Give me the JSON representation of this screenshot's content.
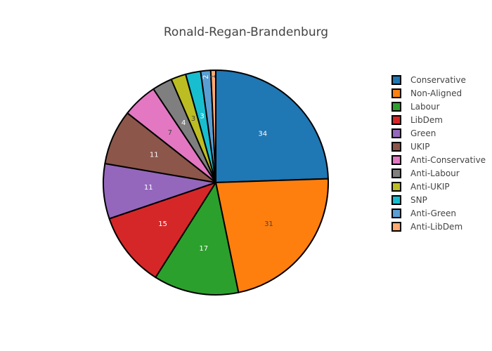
{
  "chart_data": {
    "type": "pie",
    "title": "Ronald-Regan-Brandenburg",
    "legend_position": "right",
    "sort": "descending",
    "direction": "clockwise",
    "start": "top",
    "slices": [
      {
        "label": "Conservative",
        "value": 34,
        "color": "#1f77b4"
      },
      {
        "label": "Non-Aligned",
        "value": 31,
        "color": "#ff7f0e"
      },
      {
        "label": "Labour",
        "value": 17,
        "color": "#2ca02c"
      },
      {
        "label": "LibDem",
        "value": 15,
        "color": "#d62728"
      },
      {
        "label": "Green",
        "value": 11,
        "color": "#9467bd"
      },
      {
        "label": "UKIP",
        "value": 11,
        "color": "#8c564b"
      },
      {
        "label": "Anti-Conservative",
        "value": 7,
        "color": "#e377c2"
      },
      {
        "label": "Anti-Labour",
        "value": 4,
        "color": "#7f7f7f"
      },
      {
        "label": "Anti-UKIP",
        "value": 3,
        "color": "#bcbd22"
      },
      {
        "label": "SNP",
        "value": 3,
        "color": "#17becf"
      },
      {
        "label": "Anti-Green",
        "value": 2,
        "color": "#5a9fd4"
      },
      {
        "label": "Anti-LibDem",
        "value": 1,
        "color": "#ffa970"
      }
    ],
    "slice_outline_color": "#000000"
  }
}
